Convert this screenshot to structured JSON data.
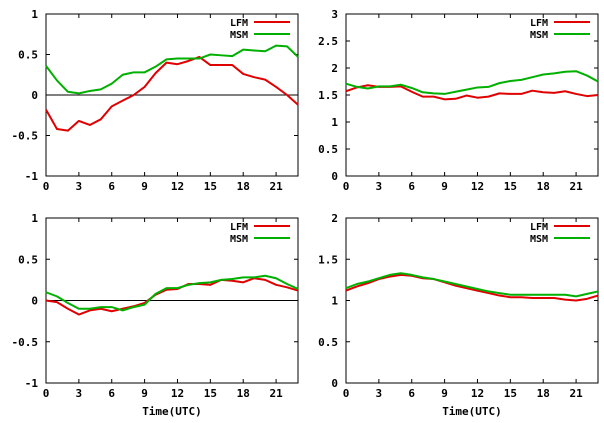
{
  "colors": {
    "LFM": "#e00000",
    "MSM": "#00b000"
  },
  "chart_data": [
    {
      "type": "line",
      "xlim": [
        0,
        23
      ],
      "ylim": [
        -1,
        1
      ],
      "xticks": [
        "0",
        "3",
        "6",
        "9",
        "12",
        "15",
        "18",
        "21"
      ],
      "yticks": [
        "-1",
        "-0.5",
        "0",
        "0.5",
        "1"
      ],
      "zero_line": true,
      "legend": "top-right",
      "xlabel": "",
      "x": [
        0,
        1,
        2,
        3,
        4,
        5,
        6,
        7,
        8,
        9,
        10,
        11,
        12,
        13,
        14,
        15,
        16,
        17,
        18,
        19,
        20,
        21,
        22,
        23
      ],
      "series": [
        {
          "name": "LFM",
          "values": [
            -0.18,
            -0.42,
            -0.44,
            -0.32,
            -0.37,
            -0.3,
            -0.14,
            -0.07,
            0.0,
            0.1,
            0.27,
            0.4,
            0.38,
            0.42,
            0.47,
            0.37,
            0.37,
            0.37,
            0.26,
            0.22,
            0.19,
            0.1,
            0.0,
            -0.12
          ]
        },
        {
          "name": "MSM",
          "values": [
            0.36,
            0.18,
            0.04,
            0.02,
            0.05,
            0.07,
            0.14,
            0.25,
            0.28,
            0.28,
            0.35,
            0.44,
            0.45,
            0.45,
            0.45,
            0.5,
            0.49,
            0.48,
            0.56,
            0.55,
            0.54,
            0.61,
            0.6,
            0.47
          ]
        }
      ]
    },
    {
      "type": "line",
      "xlim": [
        0,
        23
      ],
      "ylim": [
        0,
        3
      ],
      "xticks": [
        "0",
        "3",
        "6",
        "9",
        "12",
        "15",
        "18",
        "21"
      ],
      "yticks": [
        "0",
        "0.5",
        "1",
        "1.5",
        "2",
        "2.5",
        "3"
      ],
      "zero_line": false,
      "legend": "top-right",
      "xlabel": "",
      "x": [
        0,
        1,
        2,
        3,
        4,
        5,
        6,
        7,
        8,
        9,
        10,
        11,
        12,
        13,
        14,
        15,
        16,
        17,
        18,
        19,
        20,
        21,
        22,
        23
      ],
      "series": [
        {
          "name": "LFM",
          "values": [
            1.57,
            1.64,
            1.68,
            1.65,
            1.65,
            1.66,
            1.56,
            1.47,
            1.47,
            1.42,
            1.43,
            1.49,
            1.45,
            1.47,
            1.53,
            1.52,
            1.52,
            1.58,
            1.55,
            1.54,
            1.57,
            1.52,
            1.48,
            1.5
          ]
        },
        {
          "name": "MSM",
          "values": [
            1.71,
            1.65,
            1.62,
            1.66,
            1.66,
            1.69,
            1.63,
            1.55,
            1.53,
            1.52,
            1.56,
            1.6,
            1.64,
            1.65,
            1.72,
            1.76,
            1.78,
            1.83,
            1.88,
            1.9,
            1.93,
            1.94,
            1.86,
            1.75
          ]
        }
      ]
    },
    {
      "type": "line",
      "xlim": [
        0,
        23
      ],
      "ylim": [
        -1,
        1
      ],
      "xticks": [
        "0",
        "3",
        "6",
        "9",
        "12",
        "15",
        "18",
        "21"
      ],
      "yticks": [
        "-1",
        "-0.5",
        "0",
        "0.5",
        "1"
      ],
      "zero_line": true,
      "legend": "top-right",
      "xlabel": "Time(UTC)",
      "x": [
        0,
        1,
        2,
        3,
        4,
        5,
        6,
        7,
        8,
        9,
        10,
        11,
        12,
        13,
        14,
        15,
        16,
        17,
        18,
        19,
        20,
        21,
        22,
        23
      ],
      "series": [
        {
          "name": "LFM",
          "values": [
            0.0,
            -0.02,
            -0.1,
            -0.17,
            -0.12,
            -0.1,
            -0.13,
            -0.1,
            -0.07,
            -0.03,
            0.07,
            0.13,
            0.14,
            0.2,
            0.2,
            0.19,
            0.25,
            0.24,
            0.22,
            0.27,
            0.25,
            0.19,
            0.16,
            0.12
          ]
        },
        {
          "name": "MSM",
          "values": [
            0.1,
            0.05,
            -0.03,
            -0.1,
            -0.1,
            -0.08,
            -0.08,
            -0.12,
            -0.08,
            -0.05,
            0.08,
            0.15,
            0.15,
            0.19,
            0.21,
            0.22,
            0.25,
            0.26,
            0.28,
            0.28,
            0.3,
            0.27,
            0.2,
            0.14
          ]
        }
      ]
    },
    {
      "type": "line",
      "xlim": [
        0,
        23
      ],
      "ylim": [
        0,
        2
      ],
      "xticks": [
        "0",
        "3",
        "6",
        "9",
        "12",
        "15",
        "18",
        "21"
      ],
      "yticks": [
        "0",
        "0.5",
        "1",
        "1.5",
        "2"
      ],
      "zero_line": false,
      "legend": "top-right",
      "xlabel": "Time(UTC)",
      "x": [
        0,
        1,
        2,
        3,
        4,
        5,
        6,
        7,
        8,
        9,
        10,
        11,
        12,
        13,
        14,
        15,
        16,
        17,
        18,
        19,
        20,
        21,
        22,
        23
      ],
      "series": [
        {
          "name": "LFM",
          "values": [
            1.12,
            1.17,
            1.21,
            1.26,
            1.29,
            1.31,
            1.3,
            1.27,
            1.26,
            1.22,
            1.18,
            1.15,
            1.12,
            1.09,
            1.06,
            1.04,
            1.04,
            1.03,
            1.03,
            1.03,
            1.01,
            1.0,
            1.02,
            1.06
          ]
        },
        {
          "name": "MSM",
          "values": [
            1.15,
            1.2,
            1.23,
            1.27,
            1.31,
            1.33,
            1.31,
            1.28,
            1.26,
            1.23,
            1.2,
            1.17,
            1.14,
            1.11,
            1.09,
            1.07,
            1.07,
            1.07,
            1.07,
            1.07,
            1.07,
            1.05,
            1.08,
            1.11
          ]
        }
      ]
    }
  ]
}
